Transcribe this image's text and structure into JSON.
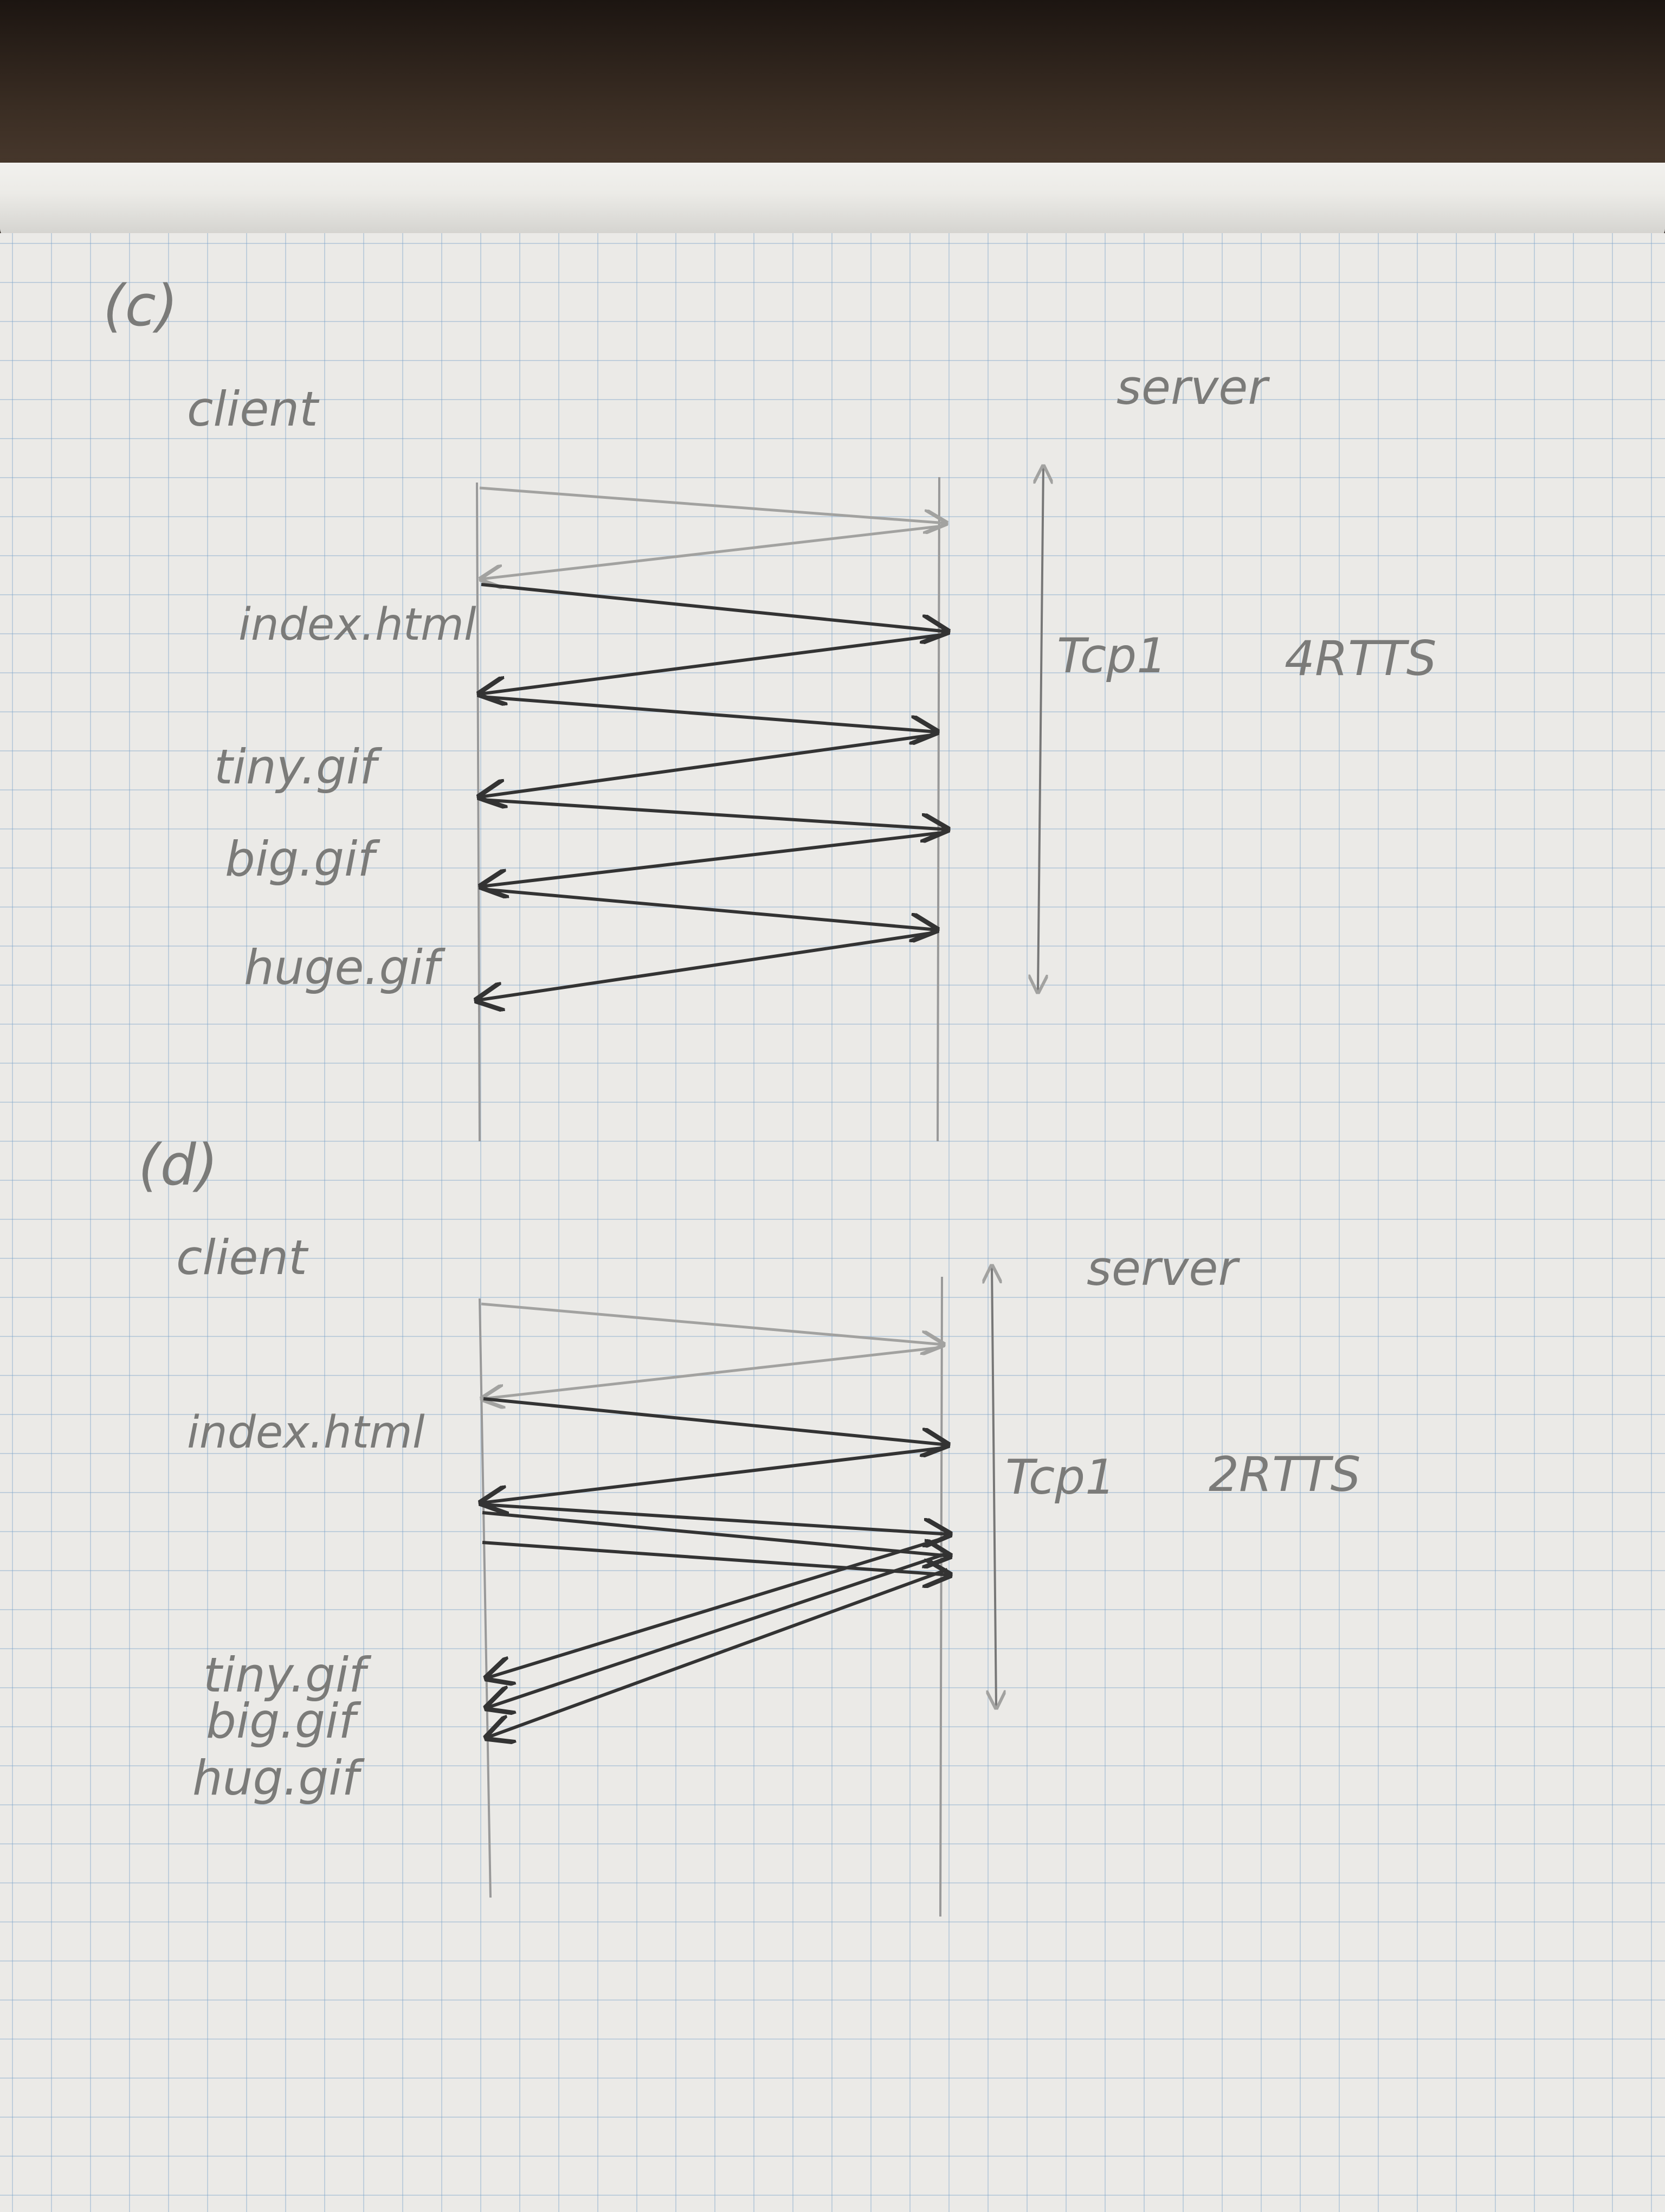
{
  "sections": [
    {
      "label": "(c)",
      "client_label": "client",
      "server_label": "server",
      "timing_note": "Tcp1",
      "rtt_note": "4RTTS",
      "files": [
        "index.html",
        "tiny.gif",
        "big.gif",
        "huge.gif"
      ]
    },
    {
      "label": "(d)",
      "client_label": "client",
      "server_label": "server",
      "timing_note": "Tcp1",
      "rtt_note": "2RTTS",
      "files": [
        "index.html",
        "tiny.gif",
        "big.gif",
        "hug.gif"
      ]
    }
  ],
  "colors": {
    "paper": "#ebeae7",
    "grid": "#76a0c8",
    "pencil_light": "#a2a2a0",
    "pencil_dark": "#333333"
  }
}
